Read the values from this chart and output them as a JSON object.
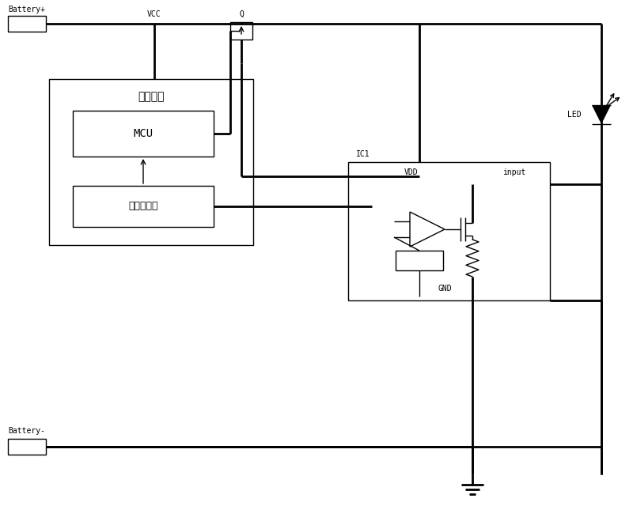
{
  "bg_color": "#ffffff",
  "line_color": "#000000",
  "lw": 2.0,
  "tlw": 1.0,
  "labels": {
    "battery_plus": "Battery+",
    "battery_minus": "Battery-",
    "vcc": "VCC",
    "q_label": "Q",
    "led_label": "LED",
    "ic1_label": "IC1",
    "vdd_label": "VDD",
    "input_label": "input",
    "gnd_label": "GND",
    "main_circuit": "主控电路",
    "mcu_label": "MCU",
    "vref_label": "电压基准源"
  }
}
